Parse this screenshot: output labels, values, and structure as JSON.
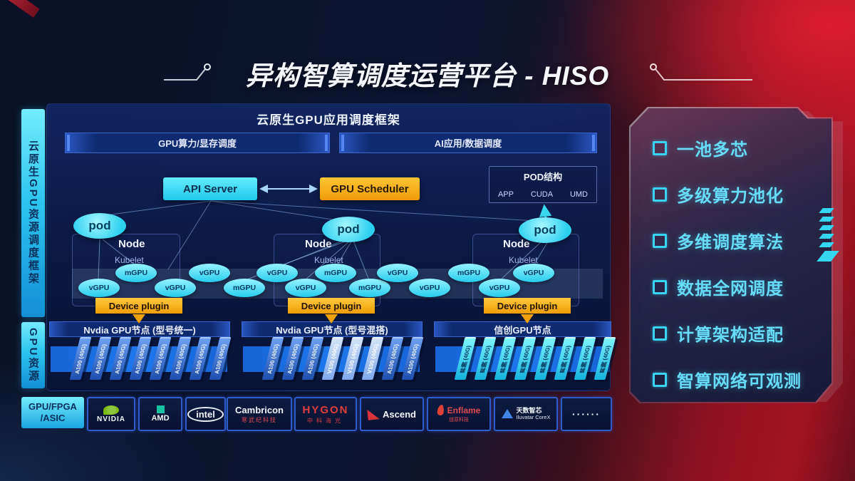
{
  "title": "异构智算调度运营平台 - HISO",
  "left_rail": {
    "scheduling_framework": "云原生GPU资源调度框架",
    "gpu_resources": "GPU资源",
    "chip_types_line1": "GPU/FPGA",
    "chip_types_line2": "/ASIC"
  },
  "framework": {
    "header": "云原生GPU应用调度框架",
    "sub_bars": [
      {
        "label": "GPU算力/显存调度"
      },
      {
        "label": "AI应用/数据调度"
      }
    ],
    "api_server_label": "API Server",
    "gpu_scheduler_label": "GPU Scheduler",
    "pod_structure": {
      "title": "POD结构",
      "items": [
        "APP",
        "CUDA",
        "UMD"
      ]
    },
    "nodes": [
      {
        "pod_label": "pod",
        "node_label": "Node",
        "kubelet_label": "Kubelet",
        "device_plugin_label": "Device plugin"
      },
      {
        "pod_label": "pod",
        "node_label": "Node",
        "kubelet_label": "Kubelet",
        "device_plugin_label": "Device plugin"
      },
      {
        "pod_label": "pod",
        "node_label": "Node",
        "kubelet_label": "Kubelet",
        "device_plugin_label": "Device plugin"
      }
    ],
    "gpu_instances": [
      {
        "label": "vGPU"
      },
      {
        "label": "mGPU"
      },
      {
        "label": "vGPU"
      },
      {
        "label": "vGPU"
      },
      {
        "label": "mGPU"
      },
      {
        "label": "vGPU"
      },
      {
        "label": "vGPU"
      },
      {
        "label": "mGPU"
      },
      {
        "label": "mGPU"
      },
      {
        "label": "vGPU"
      },
      {
        "label": "vGPU"
      },
      {
        "label": "mGPU"
      },
      {
        "label": "vGPU"
      },
      {
        "label": "vGPU"
      }
    ]
  },
  "gpu_node_groups": [
    {
      "title": "Nvdia GPU节点 (型号统一)",
      "cards": [
        {
          "label": "A100 (40G)",
          "variant": "a100"
        },
        {
          "label": "A100 (40G)",
          "variant": "a100"
        },
        {
          "label": "A100 (40G)",
          "variant": "a100"
        },
        {
          "label": "A100 (40G)",
          "variant": "a100"
        },
        {
          "label": "A100 (40G)",
          "variant": "a100"
        },
        {
          "label": "A100 (40G)",
          "variant": "a100"
        },
        {
          "label": "A100 (40G)",
          "variant": "a100"
        },
        {
          "label": "A100 (40G)",
          "variant": "a100"
        }
      ]
    },
    {
      "title": "Nvdia GPU节点 (型号混搭)",
      "cards": [
        {
          "label": "A100 (40G)",
          "variant": "a100"
        },
        {
          "label": "A100 (40G)",
          "variant": "a100"
        },
        {
          "label": "A100 (40G)",
          "variant": "a100"
        },
        {
          "label": "V100 (40G)",
          "variant": "v100"
        },
        {
          "label": "V100 (40G)",
          "variant": "v100"
        },
        {
          "label": "V100 (40G)",
          "variant": "v100"
        },
        {
          "label": "A100 (40G)",
          "variant": "a100"
        },
        {
          "label": "A100 (40G)",
          "variant": "a100"
        }
      ]
    },
    {
      "title": "信创GPU节点",
      "cards": [
        {
          "label": "昇腾 (40G)",
          "variant": "xinchuang"
        },
        {
          "label": "昇腾 (40G)",
          "variant": "xinchuang"
        },
        {
          "label": "昇腾 (40G)",
          "variant": "xinchuang"
        },
        {
          "label": "昇腾 (40G)",
          "variant": "xinchuang"
        },
        {
          "label": "昇腾 (40G)",
          "variant": "xinchuang"
        },
        {
          "label": "昇腾 (40G)",
          "variant": "xinchuang"
        },
        {
          "label": "昇腾 (40G)",
          "variant": "xinchuang"
        },
        {
          "label": "昇腾 (40G)",
          "variant": "xinchuang"
        }
      ]
    }
  ],
  "vendors": [
    {
      "id": "nvidia",
      "name": "NVIDIA",
      "icon": "nvidia-logo-icon"
    },
    {
      "id": "amd",
      "name": "AMD",
      "icon": "amd-logo-icon"
    },
    {
      "id": "intel",
      "name": "intel"
    },
    {
      "id": "cambricon",
      "name": "Cambricon",
      "sub": "寒武纪科技"
    },
    {
      "id": "hygon",
      "name": "HYGON",
      "sub": "中科海光"
    },
    {
      "id": "ascend",
      "name": "Ascend",
      "icon": "ascend-logo-icon"
    },
    {
      "id": "enflame",
      "name": "Enflame",
      "sub": "燧原科技",
      "icon": "enflame-logo-icon"
    },
    {
      "id": "iluvatar",
      "name": "天数智芯",
      "sub": "Iluvatar CoreX",
      "icon": "iluvatar-logo-icon"
    },
    {
      "id": "more",
      "name": "······"
    }
  ],
  "features": [
    "一池多芯",
    "多级算力池化",
    "多维调度算法",
    "数据全网调度",
    "计算架构适配",
    "智算网络可观测"
  ],
  "colors": {
    "cyan": "#35def2",
    "orange": "#f5a60d",
    "panel_navy": "#0c1d4e",
    "band_blue": "#1a6ae0",
    "red": "#b01320"
  }
}
